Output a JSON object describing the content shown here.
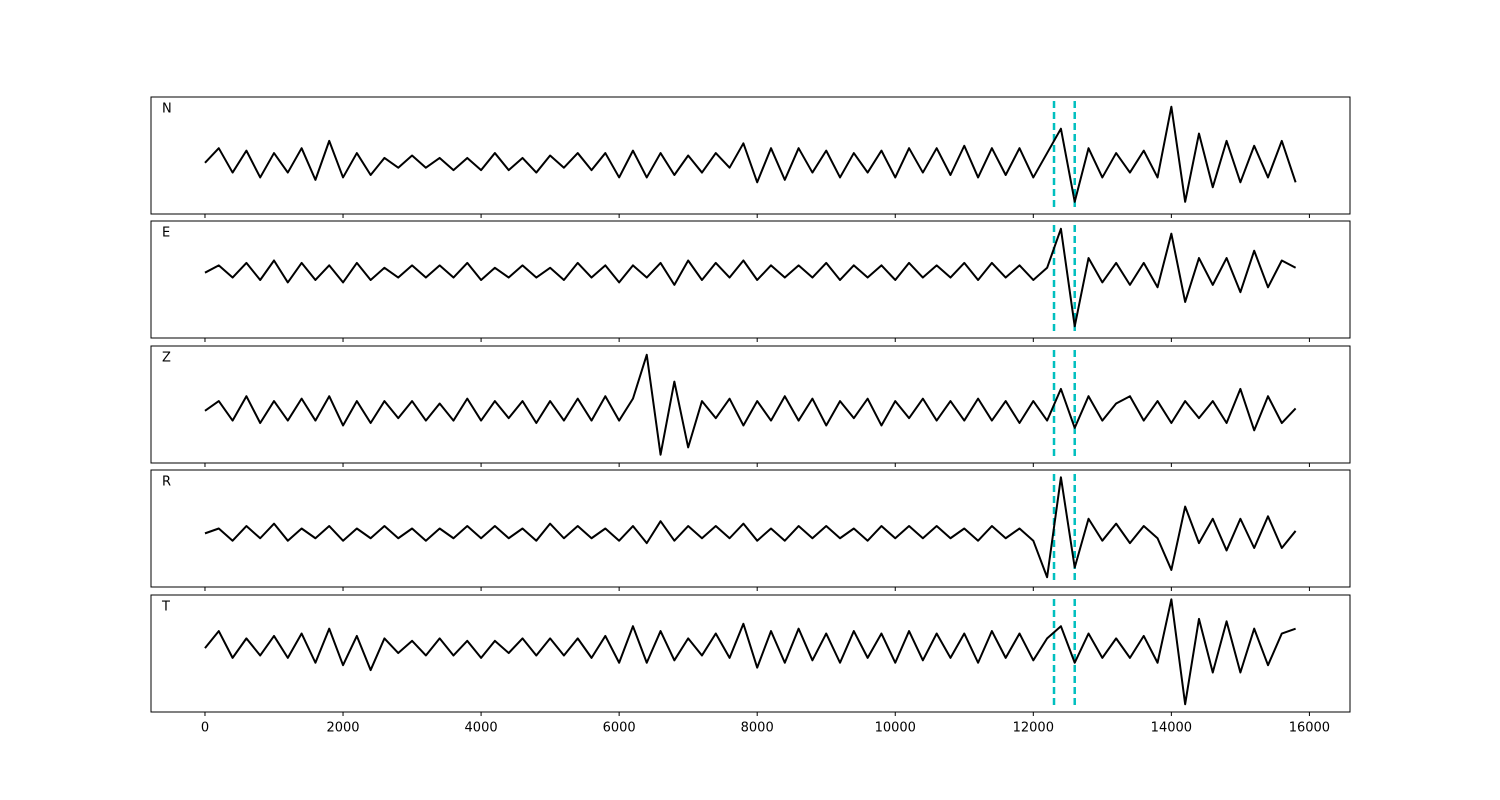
{
  "chart_data": [
    {
      "type": "line",
      "label": "N",
      "color": "#000000",
      "marker_color": "#00bfbf",
      "markers": [
        12300,
        12600
      ],
      "xlim": [
        -782,
        16588
      ],
      "ylim": [
        -1.05,
        1.35
      ],
      "xticks": [
        0,
        2000,
        4000,
        6000,
        8000,
        10000,
        12000,
        14000,
        16000
      ],
      "xticklabels": false,
      "x": [
        0,
        200,
        400,
        600,
        800,
        1000,
        1200,
        1400,
        1600,
        1800,
        2000,
        2200,
        2400,
        2600,
        2800,
        3000,
        3200,
        3400,
        3600,
        3800,
        4000,
        4200,
        4400,
        4600,
        4800,
        5000,
        5200,
        5400,
        5600,
        5800,
        6000,
        6200,
        6400,
        6600,
        6800,
        7000,
        7200,
        7400,
        7600,
        7800,
        8000,
        8200,
        8400,
        8600,
        8800,
        9000,
        9200,
        9400,
        9600,
        9800,
        10000,
        10200,
        10400,
        10600,
        10800,
        11000,
        11200,
        11400,
        11600,
        11800,
        12000,
        12200,
        12400,
        12600,
        12800,
        13000,
        13200,
        13400,
        13600,
        13800,
        14000,
        14200,
        14400,
        14600,
        14800,
        15000,
        15200,
        15400,
        15600,
        15800
      ],
      "values": [
        0,
        0.3,
        -0.2,
        0.25,
        -0.3,
        0.2,
        -0.2,
        0.3,
        -0.35,
        0.45,
        -0.3,
        0.2,
        -0.25,
        0.1,
        -0.1,
        0.15,
        -0.1,
        0.1,
        -0.15,
        0.1,
        -0.15,
        0.2,
        -0.15,
        0.1,
        -0.2,
        0.15,
        -0.1,
        0.2,
        -0.15,
        0.2,
        -0.3,
        0.25,
        -0.3,
        0.2,
        -0.25,
        0.15,
        -0.2,
        0.2,
        -0.1,
        0.4,
        -0.4,
        0.3,
        -0.35,
        0.3,
        -0.2,
        0.25,
        -0.3,
        0.2,
        -0.2,
        0.25,
        -0.3,
        0.3,
        -0.2,
        0.3,
        -0.25,
        0.35,
        -0.3,
        0.3,
        -0.25,
        0.3,
        -0.3,
        0.2,
        0.7,
        -0.8,
        0.3,
        -0.3,
        0.2,
        -0.2,
        0.25,
        -0.3,
        1.15,
        -0.8,
        0.6,
        -0.5,
        0.45,
        -0.4,
        0.35,
        -0.3,
        0.45,
        -0.4
      ]
    },
    {
      "type": "line",
      "label": "E",
      "color": "#000000",
      "marker_color": "#00bfbf",
      "markers": [
        12300,
        12600
      ],
      "xlim": [
        -782,
        16588
      ],
      "ylim": [
        -1.34,
        1.06
      ],
      "xticks": [
        0,
        2000,
        4000,
        6000,
        8000,
        10000,
        12000,
        14000,
        16000
      ],
      "xticklabels": false,
      "x": [
        0,
        200,
        400,
        600,
        800,
        1000,
        1200,
        1400,
        1600,
        1800,
        2000,
        2200,
        2400,
        2600,
        2800,
        3000,
        3200,
        3400,
        3600,
        3800,
        4000,
        4200,
        4400,
        4600,
        4800,
        5000,
        5200,
        5400,
        5600,
        5800,
        6000,
        6200,
        6400,
        6600,
        6800,
        7000,
        7200,
        7400,
        7600,
        7800,
        8000,
        8200,
        8400,
        8600,
        8800,
        9000,
        9200,
        9400,
        9600,
        9800,
        10000,
        10200,
        10400,
        10600,
        10800,
        11000,
        11200,
        11400,
        11600,
        11800,
        12000,
        12200,
        12400,
        12600,
        12800,
        13000,
        13200,
        13400,
        13600,
        13800,
        14000,
        14200,
        14400,
        14600,
        14800,
        15000,
        15200,
        15400,
        15600,
        15800
      ],
      "values": [
        0,
        0.15,
        -0.1,
        0.2,
        -0.15,
        0.25,
        -0.2,
        0.2,
        -0.15,
        0.15,
        -0.2,
        0.2,
        -0.15,
        0.1,
        -0.1,
        0.15,
        -0.1,
        0.15,
        -0.1,
        0.2,
        -0.15,
        0.1,
        -0.1,
        0.15,
        -0.1,
        0.1,
        -0.15,
        0.2,
        -0.1,
        0.15,
        -0.2,
        0.15,
        -0.1,
        0.2,
        -0.25,
        0.25,
        -0.15,
        0.2,
        -0.1,
        0.25,
        -0.15,
        0.15,
        -0.1,
        0.15,
        -0.1,
        0.2,
        -0.15,
        0.15,
        -0.1,
        0.15,
        -0.15,
        0.2,
        -0.1,
        0.15,
        -0.1,
        0.2,
        -0.15,
        0.2,
        -0.1,
        0.15,
        -0.15,
        0.1,
        0.9,
        -1.1,
        0.3,
        -0.2,
        0.2,
        -0.25,
        0.2,
        -0.3,
        0.8,
        -0.6,
        0.3,
        -0.25,
        0.3,
        -0.4,
        0.45,
        -0.3,
        0.25,
        0.1
      ]
    },
    {
      "type": "line",
      "label": "Z",
      "color": "#000000",
      "marker_color": "#00bfbf",
      "markers": [
        12300,
        12600
      ],
      "xlim": [
        -782,
        16588
      ],
      "ylim": [
        -1.07,
        1.33
      ],
      "xticks": [
        0,
        2000,
        4000,
        6000,
        8000,
        10000,
        12000,
        14000,
        16000
      ],
      "xticklabels": false,
      "x": [
        0,
        200,
        400,
        600,
        800,
        1000,
        1200,
        1400,
        1600,
        1800,
        2000,
        2200,
        2400,
        2600,
        2800,
        3000,
        3200,
        3400,
        3600,
        3800,
        4000,
        4200,
        4400,
        4600,
        4800,
        5000,
        5200,
        5400,
        5600,
        5800,
        6000,
        6200,
        6400,
        6600,
        6800,
        7000,
        7200,
        7400,
        7600,
        7800,
        8000,
        8200,
        8400,
        8600,
        8800,
        9000,
        9200,
        9400,
        9600,
        9800,
        10000,
        10200,
        10400,
        10600,
        10800,
        11000,
        11200,
        11400,
        11600,
        11800,
        12000,
        12200,
        12400,
        12600,
        12800,
        13000,
        13200,
        13400,
        13600,
        13800,
        14000,
        14200,
        14400,
        14600,
        14800,
        15000,
        15200,
        15400,
        15600,
        15800
      ],
      "values": [
        0,
        0.2,
        -0.2,
        0.3,
        -0.25,
        0.2,
        -0.2,
        0.25,
        -0.2,
        0.3,
        -0.3,
        0.2,
        -0.25,
        0.2,
        -0.15,
        0.2,
        -0.2,
        0.15,
        -0.2,
        0.25,
        -0.2,
        0.2,
        -0.15,
        0.2,
        -0.25,
        0.2,
        -0.2,
        0.25,
        -0.2,
        0.3,
        -0.2,
        0.25,
        1.15,
        -0.9,
        0.6,
        -0.75,
        0.2,
        -0.15,
        0.25,
        -0.3,
        0.2,
        -0.2,
        0.3,
        -0.2,
        0.25,
        -0.3,
        0.2,
        -0.15,
        0.25,
        -0.3,
        0.2,
        -0.15,
        0.25,
        -0.2,
        0.2,
        -0.2,
        0.25,
        -0.2,
        0.2,
        -0.25,
        0.2,
        -0.2,
        0.45,
        -0.35,
        0.3,
        -0.2,
        0.15,
        0.3,
        -0.2,
        0.2,
        -0.25,
        0.2,
        -0.15,
        0.2,
        -0.25,
        0.45,
        -0.4,
        0.3,
        -0.25,
        0.05
      ]
    },
    {
      "type": "line",
      "label": "R",
      "color": "#000000",
      "marker_color": "#00bfbf",
      "markers": [
        12300,
        12600
      ],
      "xlim": [
        -782,
        16588
      ],
      "ylim": [
        -1.1,
        1.3
      ],
      "xticks": [
        0,
        2000,
        4000,
        6000,
        8000,
        10000,
        12000,
        14000,
        16000
      ],
      "xticklabels": false,
      "x": [
        0,
        200,
        400,
        600,
        800,
        1000,
        1200,
        1400,
        1600,
        1800,
        2000,
        2200,
        2400,
        2600,
        2800,
        3000,
        3200,
        3400,
        3600,
        3800,
        4000,
        4200,
        4400,
        4600,
        4800,
        5000,
        5200,
        5400,
        5600,
        5800,
        6000,
        6200,
        6400,
        6600,
        6800,
        7000,
        7200,
        7400,
        7600,
        7800,
        8000,
        8200,
        8400,
        8600,
        8800,
        9000,
        9200,
        9400,
        9600,
        9800,
        10000,
        10200,
        10400,
        10600,
        10800,
        11000,
        11200,
        11400,
        11600,
        11800,
        12000,
        12200,
        12400,
        12600,
        12800,
        13000,
        13200,
        13400,
        13600,
        13800,
        14000,
        14200,
        14400,
        14600,
        14800,
        15000,
        15200,
        15400,
        15600,
        15800
      ],
      "values": [
        0,
        0.1,
        -0.15,
        0.15,
        -0.1,
        0.2,
        -0.15,
        0.1,
        -0.1,
        0.15,
        -0.15,
        0.1,
        -0.1,
        0.15,
        -0.1,
        0.1,
        -0.15,
        0.1,
        -0.1,
        0.15,
        -0.1,
        0.15,
        -0.1,
        0.1,
        -0.15,
        0.2,
        -0.1,
        0.15,
        -0.1,
        0.1,
        -0.15,
        0.15,
        -0.2,
        0.25,
        -0.15,
        0.15,
        -0.1,
        0.15,
        -0.1,
        0.2,
        -0.15,
        0.1,
        -0.15,
        0.15,
        -0.1,
        0.15,
        -0.1,
        0.1,
        -0.15,
        0.15,
        -0.1,
        0.15,
        -0.1,
        0.15,
        -0.1,
        0.1,
        -0.15,
        0.15,
        -0.1,
        0.1,
        -0.15,
        -0.9,
        1.15,
        -0.7,
        0.3,
        -0.15,
        0.2,
        -0.2,
        0.15,
        -0.1,
        -0.75,
        0.55,
        -0.2,
        0.3,
        -0.35,
        0.3,
        -0.3,
        0.35,
        -0.3,
        0.05
      ]
    },
    {
      "type": "line",
      "label": "T",
      "color": "#000000",
      "marker_color": "#00bfbf",
      "markers": [
        12300,
        12600
      ],
      "xlim": [
        -782,
        16588
      ],
      "ylim": [
        -1.31,
        1.09
      ],
      "xticks": [
        0,
        2000,
        4000,
        6000,
        8000,
        10000,
        12000,
        14000,
        16000
      ],
      "xticklabels": true,
      "x": [
        0,
        200,
        400,
        600,
        800,
        1000,
        1200,
        1400,
        1600,
        1800,
        2000,
        2200,
        2400,
        2600,
        2800,
        3000,
        3200,
        3400,
        3600,
        3800,
        4000,
        4200,
        4400,
        4600,
        4800,
        5000,
        5200,
        5400,
        5600,
        5800,
        6000,
        6200,
        6400,
        6600,
        6800,
        7000,
        7200,
        7400,
        7600,
        7800,
        8000,
        8200,
        8400,
        8600,
        8800,
        9000,
        9200,
        9400,
        9600,
        9800,
        10000,
        10200,
        10400,
        10600,
        10800,
        11000,
        11200,
        11400,
        11600,
        11800,
        12000,
        12200,
        12400,
        12600,
        12800,
        13000,
        13200,
        13400,
        13600,
        13800,
        14000,
        14200,
        14400,
        14600,
        14800,
        15000,
        15200,
        15400,
        15600,
        15800
      ],
      "values": [
        0,
        0.35,
        -0.2,
        0.2,
        -0.15,
        0.25,
        -0.2,
        0.3,
        -0.3,
        0.4,
        -0.35,
        0.25,
        -0.45,
        0.2,
        -0.1,
        0.15,
        -0.15,
        0.2,
        -0.15,
        0.15,
        -0.2,
        0.15,
        -0.1,
        0.2,
        -0.15,
        0.2,
        -0.15,
        0.2,
        -0.2,
        0.25,
        -0.3,
        0.45,
        -0.3,
        0.35,
        -0.25,
        0.2,
        -0.15,
        0.3,
        -0.2,
        0.5,
        -0.4,
        0.35,
        -0.3,
        0.4,
        -0.25,
        0.3,
        -0.3,
        0.35,
        -0.2,
        0.3,
        -0.3,
        0.35,
        -0.25,
        0.3,
        -0.2,
        0.3,
        -0.3,
        0.35,
        -0.2,
        0.3,
        -0.25,
        0.2,
        0.45,
        -0.3,
        0.3,
        -0.2,
        0.2,
        -0.2,
        0.25,
        -0.3,
        1.0,
        -1.15,
        0.6,
        -0.5,
        0.55,
        -0.5,
        0.4,
        -0.35,
        0.3,
        0.4
      ]
    }
  ]
}
